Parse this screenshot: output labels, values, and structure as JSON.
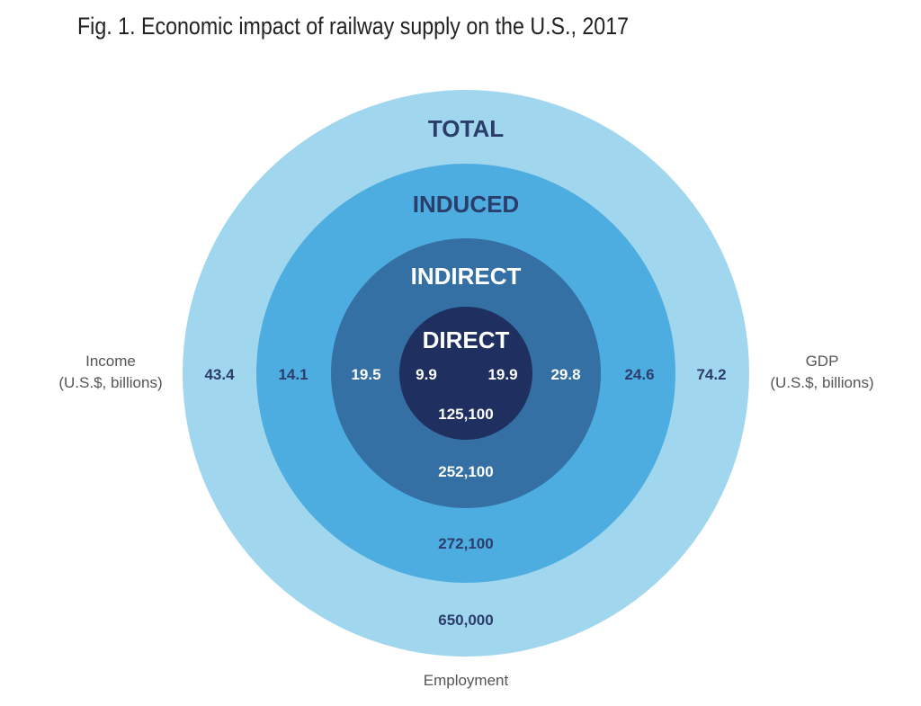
{
  "title": "Fig. 1. Economic impact of railway supply on the U.S., 2017",
  "side_labels": {
    "income": {
      "line1": "Income",
      "line2": "(U.S.$, billions)"
    },
    "gdp": {
      "line1": "GDP",
      "line2": "(U.S.$, billions)"
    },
    "employment": "Employment"
  },
  "colors": {
    "total": "#a0d6ee",
    "induced": "#4dade0",
    "indirect": "#3470a3",
    "direct": "#1f2f5f",
    "dark_text": "#2b3d6b",
    "light_text": "#ffffff"
  },
  "layers": [
    {
      "key": "total",
      "label": "TOTAL",
      "income": "43.4",
      "gdp": "74.2",
      "employment": "650,000"
    },
    {
      "key": "induced",
      "label": "INDUCED",
      "income": "14.1",
      "gdp": "24.6",
      "employment": "272,100"
    },
    {
      "key": "indirect",
      "label": "INDIRECT",
      "income": "19.5",
      "gdp": "29.8",
      "employment": "252,100"
    },
    {
      "key": "direct",
      "label": "DIRECT",
      "income": "9.9",
      "gdp": "19.9",
      "employment": "125,100"
    }
  ]
}
